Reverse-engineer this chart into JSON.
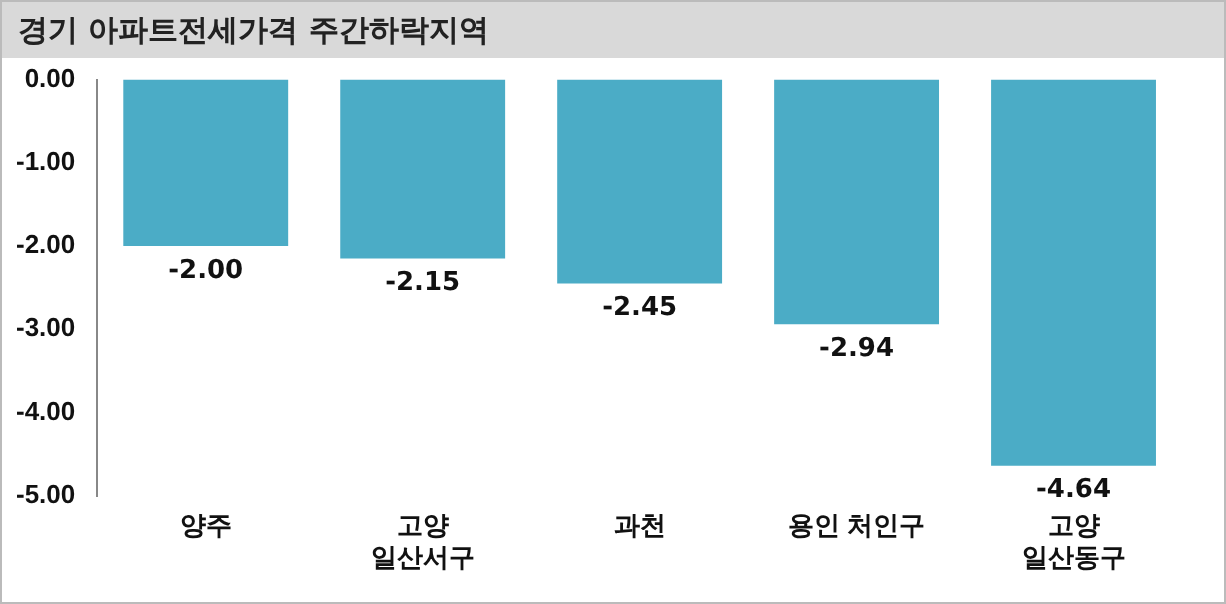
{
  "chart_data": {
    "type": "bar",
    "title": "경기 아파트전세가격 주간하락지역",
    "categories": [
      "양주",
      "고양\n일산서구",
      "과천",
      "용인 처인구",
      "고양\n일산동구"
    ],
    "values": [
      -2.0,
      -2.15,
      -2.45,
      -2.94,
      -4.64
    ],
    "value_labels": [
      "-2.00",
      "-2.15",
      "-2.45",
      "-2.94",
      "-4.64"
    ],
    "color": "#4bacc6",
    "ylim": [
      -5,
      0
    ],
    "yticks": [
      {
        "value": 0,
        "label": "0.00"
      },
      {
        "value": -1,
        "label": "-1.00"
      },
      {
        "value": -2,
        "label": "-2.00"
      },
      {
        "value": -3,
        "label": "-3.00"
      },
      {
        "value": -4,
        "label": "-4.00"
      },
      {
        "value": -5,
        "label": "-5.00"
      }
    ],
    "grid": false,
    "legend": false
  }
}
